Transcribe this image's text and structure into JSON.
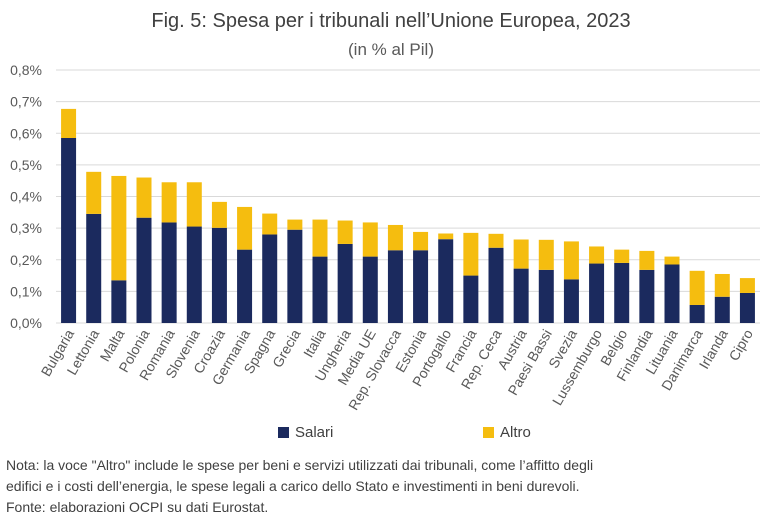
{
  "title": "Fig. 5: Spesa per i tribunali nell’Unione Europea, 2023",
  "subtitle": "(in % al Pil)",
  "colors": {
    "salari": "#1b2a5e",
    "altro": "#f5bd0f",
    "grid": "#d9d9d9",
    "axis_text": "#595959"
  },
  "legend": {
    "salari": "Salari",
    "altro": "Altro"
  },
  "note_lines": [
    "Nota: la voce \"Altro\" include le spese per beni e servizi utilizzati dai tribunali, come l’affitto degli",
    "edifici e i costi dell’energia, le spese legali a carico dello Stato e investimenti in beni durevoli.",
    "Fonte: elaborazioni OCPI su dati Eurostat."
  ],
  "chart_data": {
    "type": "bar",
    "stacked": true,
    "title": "Fig. 5: Spesa per i tribunali nell’Unione Europea, 2023",
    "subtitle": "(in % al Pil)",
    "xlabel": "",
    "ylabel": "",
    "ylim": [
      0,
      0.8
    ],
    "yticks": [
      "0,0%",
      "0,1%",
      "0,2%",
      "0,3%",
      "0,4%",
      "0,5%",
      "0,6%",
      "0,7%",
      "0,8%"
    ],
    "grid": true,
    "legend_position": "bottom",
    "categories": [
      "Bulgaria",
      "Lettonia",
      "Malta",
      "Polonia",
      "Romania",
      "Slovenia",
      "Croazia",
      "Germania",
      "Spagna",
      "Grecia",
      "Italia",
      "Ungheria",
      "Media UE",
      "Rep. Slovacca",
      "Estonia",
      "Portogallo",
      "Francia",
      "Rep. Ceca",
      "Austria",
      "Paesi Bassi",
      "Svezia",
      "Lussemburgo",
      "Belgio",
      "Finlandia",
      "Lituania",
      "Danimarca",
      "Irlanda",
      "Cipro"
    ],
    "series": [
      {
        "name": "Salari",
        "values": [
          0.585,
          0.345,
          0.135,
          0.333,
          0.318,
          0.305,
          0.301,
          0.232,
          0.28,
          0.295,
          0.21,
          0.25,
          0.21,
          0.23,
          0.23,
          0.265,
          0.15,
          0.238,
          0.172,
          0.168,
          0.138,
          0.188,
          0.19,
          0.168,
          0.185,
          0.057,
          0.083,
          0.095
        ]
      },
      {
        "name": "Altro",
        "values": [
          0.092,
          0.133,
          0.33,
          0.127,
          0.127,
          0.14,
          0.082,
          0.135,
          0.066,
          0.032,
          0.117,
          0.074,
          0.108,
          0.08,
          0.058,
          0.018,
          0.135,
          0.044,
          0.092,
          0.095,
          0.12,
          0.054,
          0.042,
          0.06,
          0.025,
          0.108,
          0.072,
          0.047
        ]
      }
    ]
  }
}
